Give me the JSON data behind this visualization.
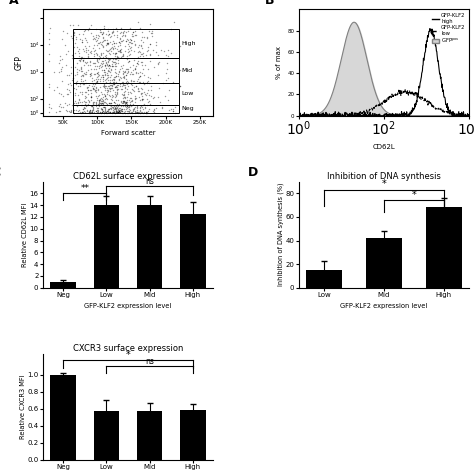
{
  "panel_C": {
    "title": "CD62L surface expression",
    "categories": [
      "Neg",
      "Low",
      "Mid",
      "High"
    ],
    "values": [
      1.0,
      14.0,
      14.0,
      12.5
    ],
    "errors": [
      0.3,
      1.5,
      1.5,
      2.0
    ],
    "ylabel": "Relative CD62L MFI",
    "xlabel": "GFP-KLF2 expression level",
    "ylim": [
      0,
      18
    ],
    "yticks": [
      0,
      2,
      4,
      6,
      8,
      10,
      12,
      14,
      16
    ]
  },
  "panel_D": {
    "title": "Inhibition of DNA synthesis",
    "categories": [
      "Low",
      "Mid",
      "High"
    ],
    "values": [
      15,
      42,
      68
    ],
    "errors": [
      8,
      6,
      8
    ],
    "ylabel": "Inhibition of DNA synthesis (%)",
    "xlabel": "GFP-KLF2 expression level",
    "ylim": [
      0,
      90
    ],
    "yticks": [
      0,
      20,
      40,
      60,
      80
    ]
  },
  "panel_E": {
    "title": "CXCR3 surface expression",
    "categories": [
      "Neg",
      "Low",
      "Mid",
      "High"
    ],
    "values": [
      1.0,
      0.58,
      0.57,
      0.59
    ],
    "errors": [
      0.02,
      0.12,
      0.1,
      0.07
    ],
    "ylabel": "Relative CXCR3 MFI",
    "xlabel": "",
    "ylim": [
      0,
      1.25
    ],
    "yticks": [
      0.0,
      0.2,
      0.4,
      0.6,
      0.8,
      1.0
    ]
  },
  "bar_color": "#000000",
  "bg_color": "#ffffff"
}
